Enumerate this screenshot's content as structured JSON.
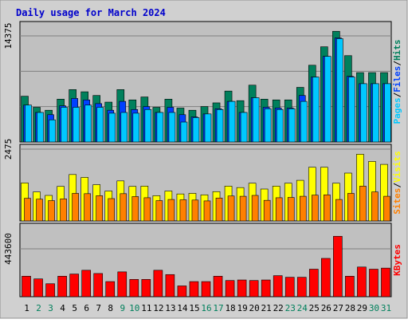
{
  "chart_data": {
    "type": "bar",
    "title": "Daily usage for March 2024",
    "categories": [
      "1",
      "2",
      "3",
      "4",
      "5",
      "6",
      "7",
      "8",
      "9",
      "10",
      "11",
      "12",
      "13",
      "14",
      "15",
      "16",
      "17",
      "18",
      "19",
      "20",
      "21",
      "22",
      "23",
      "24",
      "25",
      "26",
      "27",
      "28",
      "29",
      "30",
      "31"
    ],
    "weekend_days": [
      "2",
      "3",
      "9",
      "10",
      "16",
      "17",
      "23",
      "24",
      "30",
      "31"
    ],
    "colors": {
      "title": "#0000cc",
      "hits": "#00805c",
      "files": "#0040ff",
      "pages": "#00c8ff",
      "visits": "#ffff00",
      "sites": "#ff8000",
      "kbytes": "#ff0000",
      "weekend_label": "#00805c",
      "weekday_label": "#000000",
      "plot_bg": "#c0c0c0",
      "frame_bg": "#d0d0d0",
      "gridline": "#808080"
    },
    "panels": [
      {
        "id": "top",
        "ytick": "14375",
        "ymax": 14375,
        "series": [
          {
            "name": "Hits",
            "values": [
              6200,
              4700,
              4300,
              5800,
              7100,
              6800,
              6300,
              5400,
              7100,
              5700,
              6100,
              4700,
              5800,
              4600,
              4300,
              4800,
              5300,
              6900,
              5600,
              7700,
              5800,
              5700,
              5700,
              7400,
              10400,
              12900,
              15000,
              11700,
              9400,
              9400,
              9400
            ]
          },
          {
            "name": "Files",
            "values": [
              5000,
              4000,
              3700,
              4900,
              5900,
              5700,
              5200,
              4300,
              5500,
              4400,
              4800,
              4000,
              4700,
              3700,
              3400,
              3800,
              4500,
              5500,
              4000,
              6000,
              4700,
              4600,
              4600,
              6300,
              8800,
              11600,
              14100,
              8900,
              7900,
              7900,
              7900
            ]
          },
          {
            "name": "Pages",
            "values": [
              5000,
              4000,
              3000,
              4700,
              4700,
              5000,
              4700,
              3900,
              4000,
              3900,
              4400,
              4000,
              4000,
              2700,
              3300,
              3800,
              4400,
              5500,
              4000,
              6000,
              4500,
              4400,
              4500,
              5500,
              8800,
              11600,
              14000,
              8800,
              7900,
              7900,
              7900
            ]
          }
        ],
        "legend": [
          "Pages",
          "/",
          "Files",
          "/",
          "Hits"
        ]
      },
      {
        "id": "middle",
        "ytick": "2475",
        "ymax": 2475,
        "series": [
          {
            "name": "Visits",
            "values": [
              1310,
              1000,
              880,
              1190,
              1600,
              1500,
              1250,
              1030,
              1380,
              1190,
              1200,
              870,
              1030,
              930,
              950,
              900,
              1010,
              1200,
              1150,
              1300,
              1100,
              1200,
              1300,
              1400,
              1850,
              1850,
              1300,
              1650,
              2300,
              2050,
              1950
            ]
          },
          {
            "name": "Sites",
            "values": [
              780,
              750,
              700,
              760,
              950,
              940,
              870,
              770,
              940,
              840,
              800,
              700,
              740,
              730,
              720,
              690,
              790,
              860,
              850,
              880,
              710,
              800,
              810,
              850,
              890,
              900,
              740,
              950,
              1200,
              1000,
              850
            ]
          }
        ],
        "legend": [
          "Sites",
          "/",
          "Visits"
        ]
      },
      {
        "id": "bottom",
        "ytick": "443600",
        "ymax": 443600,
        "series": [
          {
            "name": "KBytes",
            "values": [
              190000,
              165000,
              120000,
              190000,
              210000,
              245000,
              215000,
              140000,
              230000,
              160000,
              160000,
              245000,
              205000,
              100000,
              140000,
              140000,
              190000,
              150000,
              155000,
              150000,
              155000,
              195000,
              180000,
              180000,
              255000,
              355000,
              560000,
              190000,
              275000,
              255000,
              265000
            ]
          }
        ],
        "legend": [
          "KBytes"
        ]
      }
    ]
  }
}
